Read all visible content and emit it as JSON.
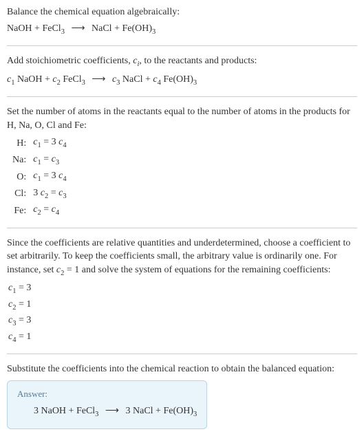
{
  "intro": {
    "line1": "Balance the chemical equation algebraically:",
    "reactants": [
      "NaOH",
      "FeCl",
      "3"
    ],
    "products": [
      "NaCl",
      "Fe(OH)",
      "3"
    ]
  },
  "step2": {
    "text_a": "Add stoichiometric coefficients, ",
    "ci": "c",
    "ci_sub": "i",
    "text_b": ", to the reactants and products:",
    "eq": {
      "c1": "c",
      "c1s": "1",
      "r1": " NaOH + ",
      "c2": "c",
      "c2s": "2",
      "r2": " FeCl",
      "r2s": "3",
      "arrow": "⟶",
      "c3": "c",
      "c3s": "3",
      "p1": " NaCl + ",
      "c4": "c",
      "c4s": "4",
      "p2": " Fe(OH)",
      "p2s": "3"
    }
  },
  "step3": {
    "text": "Set the number of atoms in the reactants equal to the number of atoms in the products for H, Na, O, Cl and Fe:",
    "rows": [
      {
        "el": "H:",
        "lhs_c": "c",
        "lhs_s": "1",
        "op": " = 3 ",
        "rhs_c": "c",
        "rhs_s": "4"
      },
      {
        "el": "Na:",
        "lhs_c": "c",
        "lhs_s": "1",
        "op": " = ",
        "rhs_c": "c",
        "rhs_s": "3"
      },
      {
        "el": "O:",
        "lhs_c": "c",
        "lhs_s": "1",
        "op": " = 3 ",
        "rhs_c": "c",
        "rhs_s": "4"
      },
      {
        "el": "Cl:",
        "pre": "3 ",
        "lhs_c": "c",
        "lhs_s": "2",
        "op": " = ",
        "rhs_c": "c",
        "rhs_s": "3"
      },
      {
        "el": "Fe:",
        "lhs_c": "c",
        "lhs_s": "2",
        "op": " = ",
        "rhs_c": "c",
        "rhs_s": "4"
      }
    ]
  },
  "step4": {
    "text_a": "Since the coefficients are relative quantities and underdetermined, choose a coefficient to set arbitrarily. To keep the coefficients small, the arbitrary value is ordinarily one. For instance, set ",
    "cset": "c",
    "cset_s": "2",
    "cset_eq": " = 1",
    "text_b": " and solve the system of equations for the remaining coefficients:",
    "solns": [
      {
        "c": "c",
        "s": "1",
        "v": " = 3"
      },
      {
        "c": "c",
        "s": "2",
        "v": " = 1"
      },
      {
        "c": "c",
        "s": "3",
        "v": " = 3"
      },
      {
        "c": "c",
        "s": "4",
        "v": " = 1"
      }
    ]
  },
  "step5": {
    "text": "Substitute the coefficients into the chemical reaction to obtain the balanced equation:"
  },
  "answer": {
    "title": "Answer:",
    "eq_a": "3 NaOH + FeCl",
    "eq_a_s": "3",
    "arrow": "⟶",
    "eq_b": "3 NaCl + Fe(OH)",
    "eq_b_s": "3"
  },
  "arrow_glyph": "⟶"
}
